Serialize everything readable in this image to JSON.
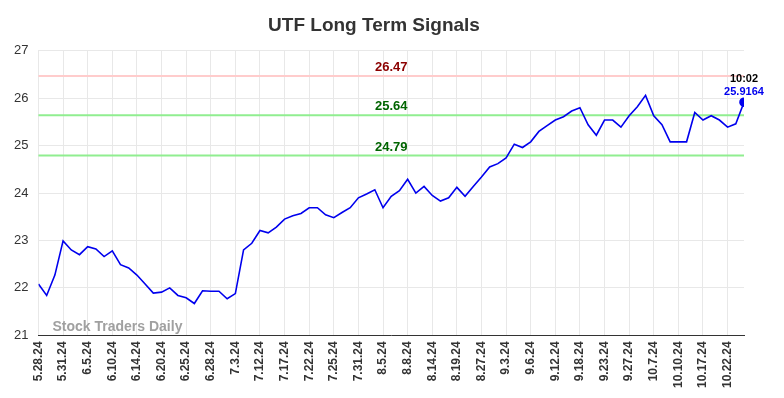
{
  "chart_data": {
    "type": "line",
    "title": "UTF Long Term Signals",
    "categories": [
      "5.28.24",
      null,
      null,
      "5.31.24",
      null,
      null,
      "6.5.24",
      null,
      null,
      "6.10.24",
      null,
      null,
      "6.14.24",
      null,
      null,
      "6.20.24",
      null,
      null,
      "6.25.24",
      null,
      null,
      "6.28.24",
      null,
      null,
      "7.3.24",
      null,
      null,
      "7.12.24",
      null,
      null,
      "7.17.24",
      null,
      null,
      "7.22.24",
      null,
      null,
      "7.25.24",
      null,
      null,
      "7.31.24",
      null,
      null,
      "8.5.24",
      null,
      null,
      "8.8.24",
      null,
      null,
      "8.14.24",
      null,
      null,
      "8.19.24",
      null,
      null,
      "8.27.24",
      null,
      null,
      "9.3.24",
      null,
      null,
      "9.6.24",
      null,
      null,
      "9.12.24",
      null,
      null,
      "9.18.24",
      null,
      null,
      "9.23.24",
      null,
      null,
      "9.27.24",
      null,
      null,
      "10.7.24",
      null,
      null,
      "10.10.24",
      null,
      null,
      "10.17.24",
      null,
      null,
      "10.22.24",
      null,
      null
    ],
    "values": [
      22.08,
      21.84,
      22.27,
      22.99,
      22.8,
      22.7,
      22.87,
      22.82,
      22.66,
      22.78,
      22.49,
      22.42,
      22.27,
      22.08,
      21.89,
      21.91,
      22.0,
      21.84,
      21.79,
      21.67,
      21.94,
      21.93,
      21.93,
      21.77,
      21.88,
      22.8,
      22.94,
      23.21,
      23.16,
      23.28,
      23.45,
      23.52,
      23.57,
      23.69,
      23.69,
      23.54,
      23.48,
      23.59,
      23.69,
      23.9,
      23.98,
      24.07,
      23.69,
      23.93,
      24.05,
      24.29,
      24.0,
      24.14,
      23.95,
      23.83,
      23.9,
      24.12,
      23.93,
      24.14,
      24.34,
      24.55,
      24.62,
      24.74,
      25.03,
      24.96,
      25.08,
      25.3,
      25.42,
      25.54,
      25.61,
      25.73,
      25.8,
      25.44,
      25.22,
      25.54,
      25.54,
      25.39,
      25.63,
      25.82,
      26.06,
      25.63,
      25.44,
      25.08,
      25.08,
      25.08,
      25.7,
      25.54,
      25.63,
      25.54,
      25.39,
      25.46,
      25.9164
    ],
    "color": "#0000ee",
    "ylim": [
      21,
      27
    ],
    "yticks": [
      21,
      22,
      23,
      24,
      25,
      26,
      27
    ],
    "grid": true,
    "reference_lines": [
      {
        "value": 26.47,
        "color": "#ffcccc",
        "label_color": "#8b0000"
      },
      {
        "value": 25.64,
        "color": "#90ee90",
        "label_color": "#006400"
      },
      {
        "value": 24.79,
        "color": "#90ee90",
        "label_color": "#006400"
      }
    ],
    "last_label": "10:02",
    "watermark": "Stock Traders Daily"
  }
}
